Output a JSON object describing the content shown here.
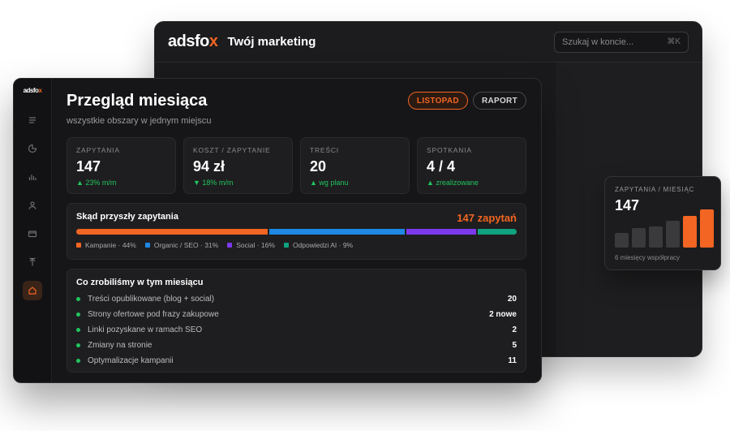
{
  "back_window": {
    "logo_main": "adsfo",
    "logo_accent": "x",
    "title": "Twój marketing",
    "search": {
      "placeholder": "Szukaj w koncie...",
      "shortcut": "⌘K"
    }
  },
  "front_window": {
    "sidebar": {
      "logo_main": "adsfo",
      "logo_accent": "x",
      "icons": [
        "menu-icon",
        "pie-chart-icon",
        "bar-chart-icon",
        "user-icon",
        "card-icon",
        "upload-icon",
        "home-icon"
      ],
      "active_icon": "home-icon"
    },
    "header": {
      "title": "Przegląd miesiąca",
      "subtitle": "wszystkie obszary w jednym miejscu",
      "month_button": "LISTOPAD",
      "report_button": "RAPORT"
    },
    "kpis": [
      {
        "label": "ZAPYTANIA",
        "value": "147",
        "trend": "▲ 23% m/m"
      },
      {
        "label": "KOSZT / ZAPYTANIE",
        "value": "94 zł",
        "trend": "▼ 18% m/m"
      },
      {
        "label": "TREŚCI",
        "value": "20",
        "trend": "▲ wg planu"
      },
      {
        "label": "SPOTKANIA",
        "value": "4 / 4",
        "trend": "▲ zrealizowane"
      }
    ],
    "sources": {
      "title": "Skąd przyszły zapytania",
      "total": "147 zapytań",
      "segments": [
        {
          "label": "Kampanie · 44%",
          "percent": 44,
          "color": "#f26522"
        },
        {
          "label": "Organic / SEO · 31%",
          "percent": 31,
          "color": "#1e88e5"
        },
        {
          "label": "Social · 16%",
          "percent": 16,
          "color": "#7c3aed"
        },
        {
          "label": "Odpowiedzi AI · 9%",
          "percent": 9,
          "color": "#10a37f"
        }
      ]
    },
    "done": {
      "title": "Co zrobiliśmy w tym miesiącu",
      "items": [
        {
          "label": "Treści opublikowane (blog + social)",
          "value": "20"
        },
        {
          "label": "Strony ofertowe pod frazy zakupowe",
          "value": "2 nowe"
        },
        {
          "label": "Linki pozyskane w ramach SEO",
          "value": "2"
        },
        {
          "label": "Zmiany na stronie",
          "value": "5"
        },
        {
          "label": "Optymalizacje kampanii",
          "value": "11"
        }
      ]
    }
  },
  "float_card": {
    "label": "ZAPYTANIA / MIESIĄC",
    "value": "147",
    "footer": "6 miesięcy współpracy",
    "bars": [
      0.38,
      0.5,
      0.55,
      0.68,
      0.82,
      0.98
    ],
    "bar_colors": [
      "#3a3a3c",
      "#3a3a3c",
      "#3a3a3c",
      "#3a3a3c",
      "#f26522",
      "#f26522"
    ]
  },
  "colors": {
    "accent": "#f26522",
    "positive": "#22c55e"
  }
}
